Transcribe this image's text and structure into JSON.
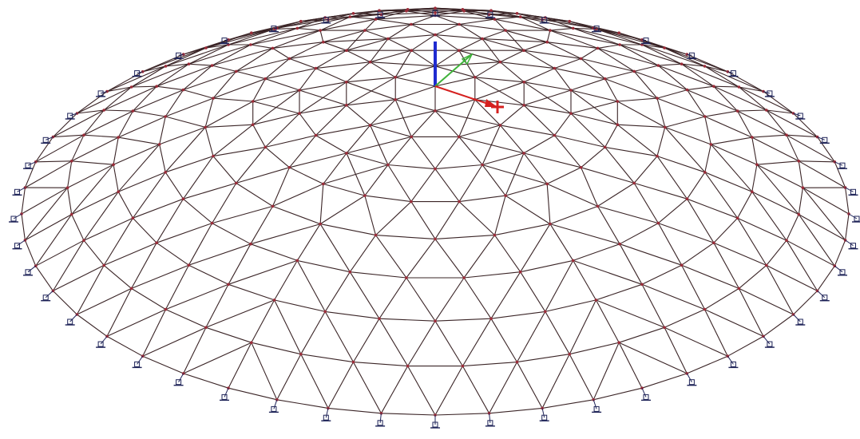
{
  "view": {
    "kind": "3d-structural-model",
    "subject": "geodesic-dome-lattice",
    "background": "#ffffff"
  },
  "model": {
    "rings": 9,
    "nodes_per_outer_ring": 48,
    "supports_on_perimeter": true
  },
  "colors": {
    "member": "#3a2426",
    "node": "#9b2c39",
    "support": "#1e2358",
    "axis_z": "#1f2bd0",
    "axis_y": "#3fb23a",
    "axis_x": "#d5201f"
  },
  "icons": {
    "axis_triad": "xyz-axis-triad-icon",
    "support": "fixed-support-icon"
  }
}
